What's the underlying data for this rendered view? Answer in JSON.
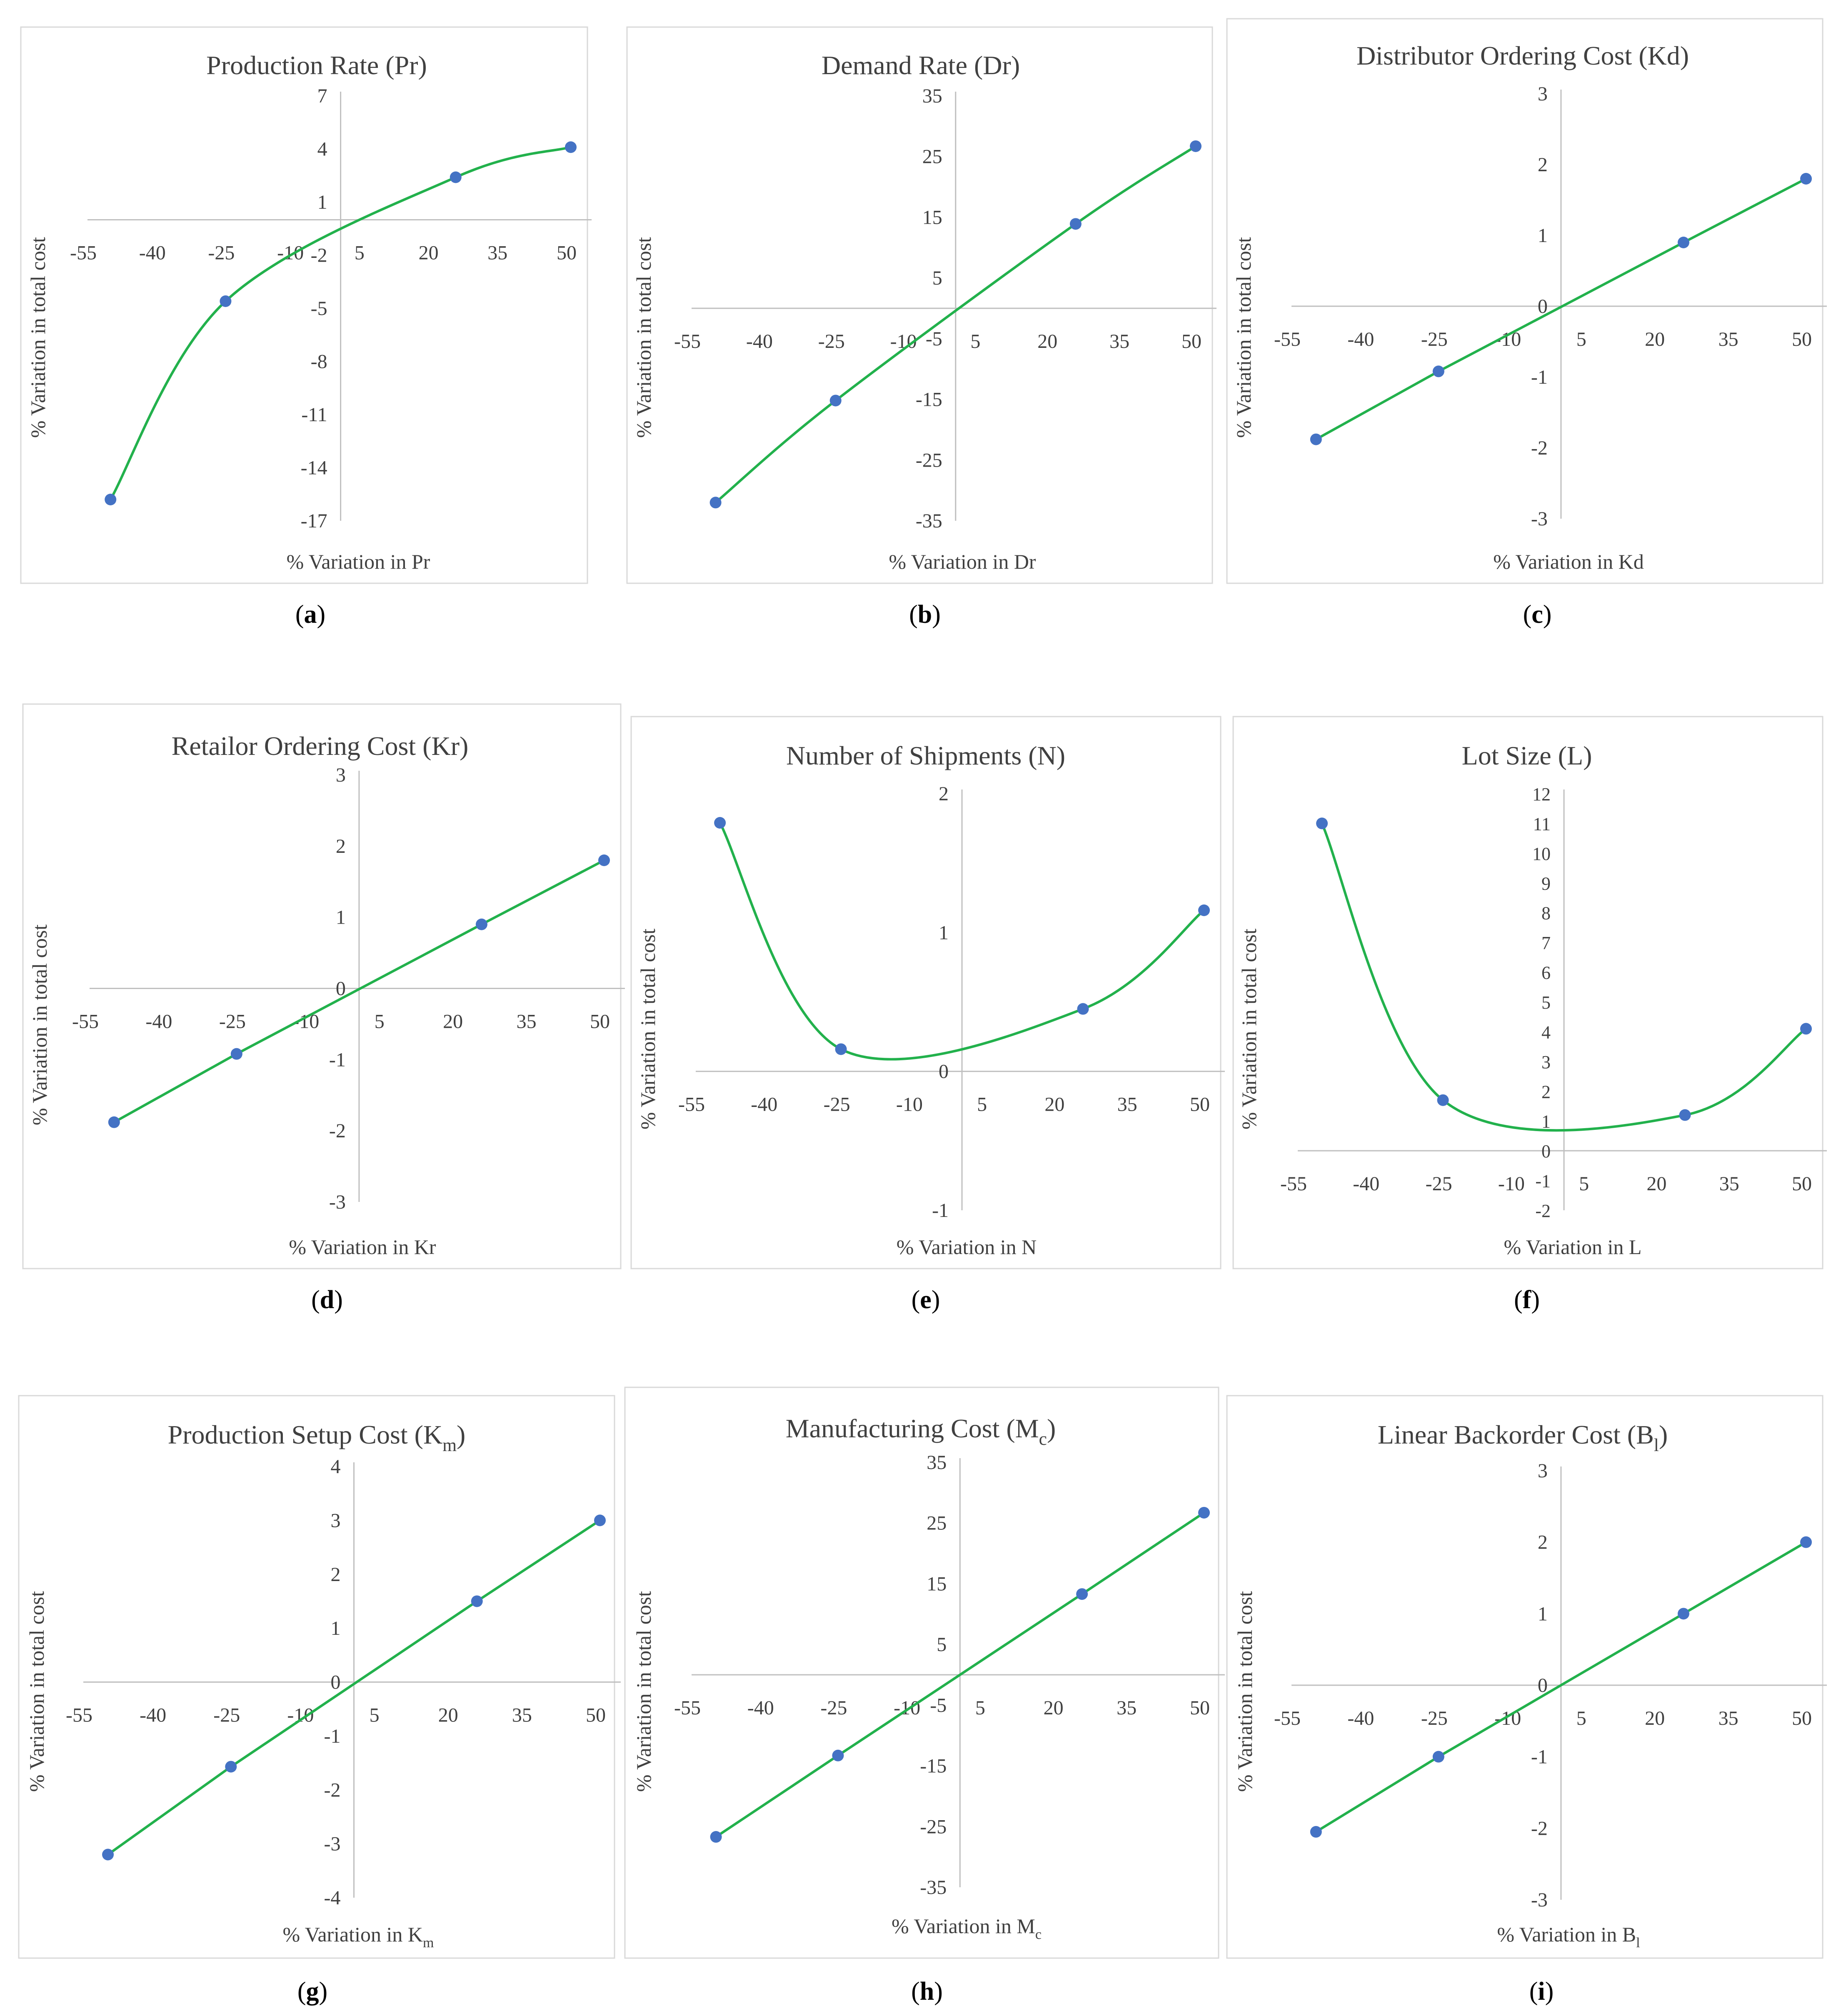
{
  "figure": {
    "x_tick_labels": [
      "-55",
      "-40",
      "-25",
      "-10",
      "5",
      "20",
      "35",
      "50"
    ],
    "colors": {
      "line": "#22b14c",
      "marker": "#4472c4",
      "frame": "#d9d9d9",
      "axis": "#bfbfbf",
      "text": "#404040"
    }
  },
  "chart_data": [
    {
      "id": "a",
      "caption": "a",
      "type": "line",
      "title": "Production Rate (Pr)",
      "xlabel": "% Variation in Pr",
      "ylabel": "% Variation in total cost",
      "x_ticks": [
        -55,
        -40,
        -25,
        -10,
        5,
        20,
        35,
        50
      ],
      "y_ticks": [
        7,
        4,
        1,
        -2,
        -5,
        -8,
        -11,
        -14,
        -17
      ],
      "x_range": [
        -55,
        50
      ],
      "y_range": [
        -17,
        7
      ],
      "x": [
        -50,
        -25,
        25,
        50
      ],
      "y": [
        -15.8,
        -4.6,
        2.4,
        4.1
      ],
      "curve": "smooth"
    },
    {
      "id": "b",
      "caption": "b",
      "type": "line",
      "title": "Demand Rate (Dr)",
      "xlabel": "% Variation in Dr",
      "ylabel": "% Variation in total cost",
      "x_ticks": [
        -55,
        -40,
        -25,
        -10,
        5,
        20,
        35,
        50
      ],
      "y_ticks": [
        35,
        25,
        15,
        5,
        -5,
        -15,
        -25,
        -35
      ],
      "x_range": [
        -55,
        50
      ],
      "y_range": [
        -35,
        35
      ],
      "x": [
        -50,
        -25,
        25,
        50
      ],
      "y": [
        -32,
        -15.2,
        13.9,
        26.7
      ],
      "curve": "smooth"
    },
    {
      "id": "c",
      "caption": "c",
      "type": "line",
      "title": "Distributor Ordering Cost (Kd)",
      "xlabel": "% Variation in Kd",
      "ylabel": "% Variation in total cost",
      "x_ticks": [
        -55,
        -40,
        -25,
        -10,
        5,
        20,
        35,
        50
      ],
      "y_ticks": [
        3,
        2,
        1,
        0,
        -1,
        -2,
        -3
      ],
      "x_range": [
        -55,
        50
      ],
      "y_range": [
        -3,
        3
      ],
      "x": [
        -50,
        -25,
        25,
        50
      ],
      "y": [
        -1.88,
        -0.92,
        0.9,
        1.8
      ],
      "curve": "linear"
    },
    {
      "id": "d",
      "caption": "d",
      "type": "line",
      "title": "Retailor Ordering Cost (Kr)",
      "xlabel": "% Variation in Kr",
      "ylabel": "% Variation in total cost",
      "x_ticks": [
        -55,
        -40,
        -25,
        -10,
        5,
        20,
        35,
        50
      ],
      "y_ticks": [
        3,
        2,
        1,
        0,
        -1,
        -2,
        -3
      ],
      "x_range": [
        -55,
        50
      ],
      "y_range": [
        -3,
        3
      ],
      "x": [
        -50,
        -25,
        25,
        50
      ],
      "y": [
        -1.88,
        -0.92,
        0.9,
        1.8
      ],
      "curve": "linear"
    },
    {
      "id": "e",
      "caption": "e",
      "type": "line",
      "title": "Number of Shipments (N)",
      "xlabel": "% Variation in N",
      "ylabel": "% Variation in total cost",
      "x_ticks": [
        -55,
        -40,
        -25,
        -10,
        5,
        20,
        35,
        50
      ],
      "y_ticks": [
        2,
        1,
        0,
        -1
      ],
      "x_range": [
        -55,
        50
      ],
      "y_range": [
        -1,
        2
      ],
      "x": [
        -50,
        -25,
        25,
        50
      ],
      "y": [
        1.79,
        0.16,
        0.45,
        1.16
      ],
      "curve": "smooth"
    },
    {
      "id": "f",
      "caption": "f",
      "type": "line",
      "title": "Lot Size (L)",
      "xlabel": "% Variation in L",
      "ylabel": "% Variation in total cost",
      "x_ticks": [
        -55,
        -40,
        -25,
        -10,
        5,
        20,
        35,
        50
      ],
      "y_ticks": [
        12,
        11,
        10,
        9,
        8,
        7,
        6,
        5,
        4,
        3,
        2,
        1,
        0,
        -1,
        -2
      ],
      "x_range": [
        -55,
        50
      ],
      "y_range": [
        -2,
        12
      ],
      "x": [
        -50,
        -25,
        25,
        50
      ],
      "y": [
        11.0,
        1.7,
        1.2,
        4.1
      ],
      "curve": "smooth"
    },
    {
      "id": "g",
      "caption": "g",
      "type": "line",
      "title_main": "Production Setup Cost (K",
      "title_sub": "m",
      "title_end": ")",
      "xlabel_main": "% Variation in K",
      "xlabel_sub": "m",
      "ylabel": "% Variation in total cost",
      "x_ticks": [
        -55,
        -40,
        -25,
        -10,
        5,
        20,
        35,
        50
      ],
      "y_ticks": [
        4,
        3,
        2,
        1,
        0,
        -1,
        -2,
        -3,
        -4
      ],
      "x_range": [
        -55,
        50
      ],
      "y_range": [
        -4,
        4
      ],
      "x": [
        -50,
        -25,
        25,
        50
      ],
      "y": [
        -3.2,
        -1.57,
        1.5,
        3.0
      ],
      "curve": "linear"
    },
    {
      "id": "h",
      "caption": "h",
      "type": "line",
      "title_main": "Manufacturing Cost (M",
      "title_sub": "c",
      "title_end": ")",
      "xlabel_main": "% Variation in M",
      "xlabel_sub": "c",
      "ylabel": "% Variation in total cost",
      "x_ticks": [
        -55,
        -40,
        -25,
        -10,
        5,
        20,
        35,
        50
      ],
      "y_ticks": [
        35,
        25,
        15,
        5,
        -5,
        -15,
        -25,
        -35
      ],
      "x_range": [
        -55,
        50
      ],
      "y_range": [
        -35,
        35
      ],
      "x": [
        -50,
        -25,
        25,
        50
      ],
      "y": [
        -26.7,
        -13.3,
        13.3,
        26.7
      ],
      "curve": "linear"
    },
    {
      "id": "i",
      "caption": "i",
      "type": "line",
      "title_main": "Linear Backorder Cost (B",
      "title_sub": "l",
      "title_end": ")",
      "xlabel_main": "% Variation in B",
      "xlabel_sub": "l",
      "ylabel": "% Variation in total cost",
      "x_ticks": [
        -55,
        -40,
        -25,
        -10,
        5,
        20,
        35,
        50
      ],
      "y_ticks": [
        3,
        2,
        1,
        0,
        -1,
        -2,
        -3
      ],
      "x_range": [
        -55,
        50
      ],
      "y_range": [
        -3,
        3
      ],
      "x": [
        -50,
        -25,
        25,
        50
      ],
      "y": [
        -2.05,
        -1.0,
        1.0,
        2.0
      ],
      "curve": "linear"
    }
  ]
}
